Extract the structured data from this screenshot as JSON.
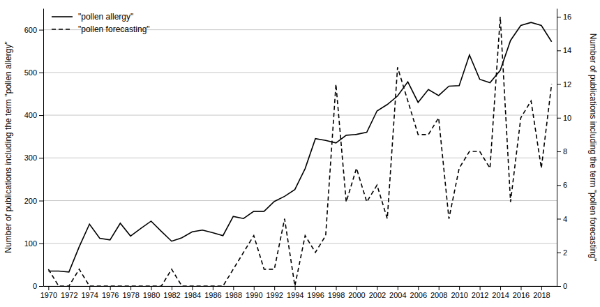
{
  "chart_data": {
    "type": "line",
    "x": [
      1970,
      1971,
      1972,
      1973,
      1974,
      1975,
      1976,
      1977,
      1978,
      1979,
      1980,
      1981,
      1982,
      1983,
      1984,
      1985,
      1986,
      1987,
      1988,
      1989,
      1990,
      1991,
      1992,
      1993,
      1994,
      1995,
      1996,
      1997,
      1998,
      1999,
      2000,
      2001,
      2002,
      2003,
      2004,
      2005,
      2006,
      2007,
      2008,
      2009,
      2010,
      2011,
      2012,
      2013,
      2014,
      2015,
      2016,
      2017,
      2018,
      2019
    ],
    "series": [
      {
        "name": "\"pollen allergy\"",
        "color": "#000000",
        "line_style": "solid",
        "values": [
          35,
          35,
          33,
          92,
          145,
          112,
          108,
          147,
          117,
          135,
          152,
          128,
          105,
          113,
          127,
          131,
          125,
          118,
          163,
          158,
          175,
          175,
          198,
          210,
          226,
          275,
          345,
          341,
          335,
          353,
          355,
          360,
          410,
          425,
          445,
          478,
          430,
          460,
          446,
          468,
          469,
          541,
          484,
          476,
          505,
          575,
          610,
          617,
          610,
          572
        ]
      },
      {
        "name": "\"pollen forecasting\"",
        "color": "#000000",
        "line_style": "dashed",
        "axis": "y2",
        "values": [
          1,
          0,
          0,
          1,
          0,
          0,
          0,
          0,
          0,
          0,
          0,
          0,
          1,
          0,
          0,
          0,
          0,
          0,
          1,
          2,
          3,
          1,
          1,
          4,
          0,
          3,
          2,
          3,
          12,
          5,
          7,
          5,
          6,
          4,
          13,
          11,
          9,
          9,
          10,
          4,
          7,
          8,
          8,
          7,
          16,
          5,
          10,
          11,
          7,
          12
        ]
      }
    ],
    "xlim": [
      1969.5,
      2019.5
    ],
    "xticks": [
      1970,
      1972,
      1974,
      1976,
      1978,
      1980,
      1982,
      1984,
      1986,
      1988,
      1990,
      1992,
      1994,
      1996,
      1998,
      2000,
      2002,
      2004,
      2006,
      2008,
      2010,
      2012,
      2014,
      2016,
      2018
    ],
    "ylim": [
      0,
      650
    ],
    "yticks": [
      0,
      100,
      200,
      300,
      400,
      500,
      600
    ],
    "y2lim": [
      0,
      16.5
    ],
    "y2ticks": [
      0,
      2,
      4,
      6,
      8,
      10,
      12,
      14,
      16
    ],
    "y_label": "Number of publications including the term \"pollen allergy\"",
    "y2_label": "Number of publications including the term \"pollen forecasting\"",
    "grid": true,
    "legend": "top-left"
  }
}
